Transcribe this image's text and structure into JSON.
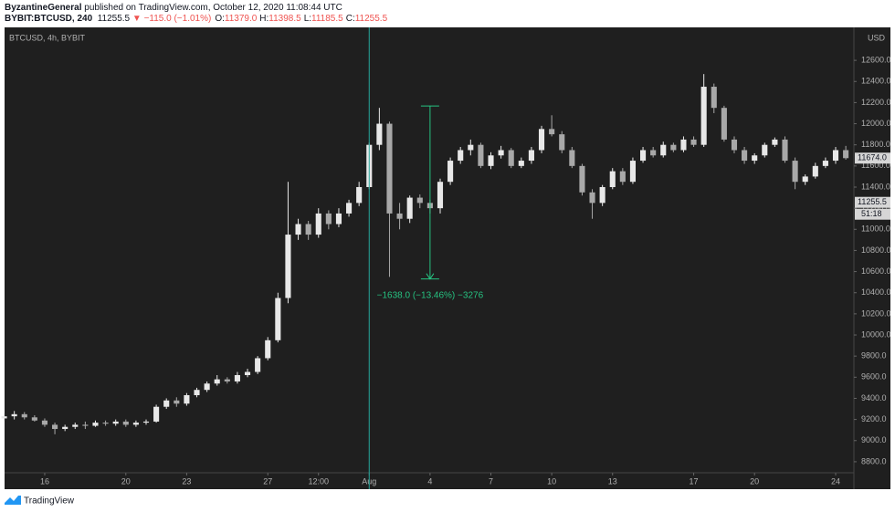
{
  "header": {
    "author": "ByzantineGeneral",
    "published": "published on TradingView.com, October 12, 2020 11:08:44 UTC",
    "symbol": "BYBIT:BTCUSD, 240",
    "last": "11255.5",
    "change": "▼ −115.0 (−1.01%)",
    "ohlc": [
      {
        "label": "O:",
        "value": "11379.0"
      },
      {
        "label": "H:",
        "value": "11398.5"
      },
      {
        "label": "L:",
        "value": "11185.5"
      },
      {
        "label": "C:",
        "value": "11255.5"
      }
    ]
  },
  "footer": {
    "brand": "TradingView"
  },
  "chart_data": {
    "type": "candlestick",
    "legend": "BTCUSD, 4h, BYBIT",
    "currency": "USD",
    "up_color": "#e8e8e8",
    "down_color": "#a8a8a8",
    "x": [
      -2,
      -1.5,
      -1,
      -0.5,
      0,
      0.5,
      1,
      1.5,
      2,
      2.5,
      3,
      3.5,
      4,
      4.5,
      5,
      5.5,
      6,
      6.5,
      7,
      7.5,
      8,
      8.5,
      9,
      9.5,
      10,
      10.5,
      11,
      11.5,
      12,
      12.5,
      13,
      13.5,
      14,
      14.5,
      15,
      15.5,
      16,
      16.5,
      17,
      17.5,
      18,
      18.5,
      19,
      19.5,
      20,
      20.5,
      21,
      21.5,
      22,
      22.5,
      23,
      23.5,
      24,
      24.5,
      25,
      25.5,
      26,
      26.5,
      27,
      27.5,
      28,
      28.5,
      29,
      29.5,
      30,
      30.5,
      31,
      31.5,
      32,
      32.5,
      33,
      33.5,
      34,
      34.5,
      35,
      35.5,
      36,
      36.5,
      37,
      37.5,
      38,
      38.5,
      39,
      39.5
    ],
    "open": [
      9210,
      9230,
      9250,
      9220,
      9190,
      9150,
      9110,
      9130,
      9150,
      9140,
      9170,
      9160,
      9180,
      9150,
      9170,
      9180,
      9320,
      9380,
      9350,
      9430,
      9480,
      9540,
      9580,
      9560,
      9620,
      9650,
      9780,
      9950,
      10350,
      10950,
      11050,
      10950,
      11150,
      11050,
      11150,
      11250,
      11400,
      11800,
      12000,
      11150,
      11100,
      11300,
      11250,
      11200,
      11450,
      11650,
      11750,
      11800,
      11600,
      11700,
      11750,
      11600,
      11650,
      11750,
      11950,
      11900,
      11750,
      11600,
      11350,
      11250,
      11400,
      11550,
      11450,
      11650,
      11750,
      11700,
      11800,
      11750,
      11850,
      11800,
      12350,
      12150,
      11850,
      11750,
      11650,
      11700,
      11800,
      11850,
      11650,
      11450,
      11500,
      11600,
      11650,
      11750
    ],
    "high": [
      9260,
      9280,
      9270,
      9240,
      9210,
      9170,
      9150,
      9170,
      9180,
      9190,
      9190,
      9200,
      9200,
      9190,
      9200,
      9340,
      9400,
      9410,
      9450,
      9500,
      9560,
      9620,
      9600,
      9650,
      9680,
      9800,
      9980,
      10400,
      11450,
      11100,
      11080,
      11200,
      11180,
      11200,
      11280,
      11450,
      11820,
      12150,
      12020,
      11250,
      11320,
      11330,
      11280,
      11480,
      11680,
      11780,
      11850,
      11820,
      11730,
      11790,
      11770,
      11680,
      11780,
      11980,
      12080,
      11930,
      11780,
      11620,
      11380,
      11420,
      11580,
      11580,
      11680,
      11780,
      11780,
      11830,
      11820,
      11880,
      11880,
      12470,
      12380,
      12170,
      11880,
      11780,
      11720,
      11820,
      11870,
      11880,
      11680,
      11520,
      11630,
      11680,
      11780,
      11790
    ],
    "low": [
      9190,
      9200,
      9200,
      9180,
      9130,
      9060,
      9090,
      9110,
      9110,
      9130,
      9140,
      9140,
      9130,
      9130,
      9150,
      9170,
      9300,
      9320,
      9330,
      9410,
      9460,
      9520,
      9540,
      9540,
      9600,
      9630,
      9760,
      9930,
      10300,
      10900,
      10900,
      10920,
      11000,
      11020,
      11120,
      11220,
      11380,
      11750,
      10550,
      11000,
      11060,
      11200,
      11150,
      11150,
      11420,
      11620,
      11700,
      11580,
      11570,
      11670,
      11580,
      11580,
      11620,
      11720,
      11880,
      11720,
      11580,
      11320,
      11100,
      11220,
      11380,
      11420,
      11430,
      11630,
      11680,
      11680,
      11730,
      11730,
      11780,
      11780,
      12100,
      11830,
      11720,
      11620,
      11620,
      11680,
      11780,
      11630,
      11380,
      11420,
      11480,
      11580,
      11620,
      11660
    ],
    "close": [
      9230,
      9250,
      9220,
      9190,
      9150,
      9110,
      9130,
      9150,
      9140,
      9170,
      9160,
      9180,
      9150,
      9170,
      9180,
      9320,
      9380,
      9350,
      9430,
      9480,
      9540,
      9580,
      9560,
      9620,
      9650,
      9780,
      9950,
      10350,
      10950,
      11050,
      10950,
      11150,
      11050,
      11150,
      11250,
      11400,
      11800,
      12000,
      11150,
      11100,
      11300,
      11250,
      11200,
      11450,
      11650,
      11750,
      11800,
      11600,
      11700,
      11750,
      11600,
      11650,
      11750,
      11950,
      11900,
      11750,
      11600,
      11350,
      11250,
      11400,
      11550,
      11450,
      11650,
      11750,
      11700,
      11800,
      11750,
      11850,
      11800,
      12350,
      12150,
      11850,
      11750,
      11650,
      11700,
      11800,
      11850,
      11650,
      11450,
      11500,
      11600,
      11650,
      11750,
      11674
    ],
    "xlim": [
      -1.98,
      39.9
    ],
    "ylim": [
      8540,
      12912
    ],
    "xticks": [
      {
        "value": 0,
        "label": "16"
      },
      {
        "value": 4,
        "label": "20"
      },
      {
        "value": 7,
        "label": "23"
      },
      {
        "value": 11,
        "label": "27"
      },
      {
        "value": 13.5,
        "label": "12:00"
      },
      {
        "value": 16,
        "label": "Aug"
      },
      {
        "value": 19,
        "label": "4"
      },
      {
        "value": 22,
        "label": "7"
      },
      {
        "value": 25,
        "label": "10"
      },
      {
        "value": 28,
        "label": "13"
      },
      {
        "value": 32,
        "label": "17"
      },
      {
        "value": 35,
        "label": "20"
      },
      {
        "value": 39,
        "label": "24"
      }
    ],
    "yticks": [
      {
        "value": 8800,
        "label": "8800.0"
      },
      {
        "value": 9000,
        "label": "9000.0"
      },
      {
        "value": 9200,
        "label": "9200.0"
      },
      {
        "value": 9400,
        "label": "9400.0"
      },
      {
        "value": 9600,
        "label": "9600.0"
      },
      {
        "value": 9800,
        "label": "9800.0"
      },
      {
        "value": 10000,
        "label": "10000.0"
      },
      {
        "value": 10200,
        "label": "10200.0"
      },
      {
        "value": 10400,
        "label": "10400.0"
      },
      {
        "value": 10600,
        "label": "10600.0"
      },
      {
        "value": 10800,
        "label": "10800.0"
      },
      {
        "value": 11000,
        "label": "11000.0"
      },
      {
        "value": 11200,
        "label": "11200.0"
      },
      {
        "value": 11400,
        "label": "11400.0"
      },
      {
        "value": 11600,
        "label": "11600.0"
      },
      {
        "value": 11800,
        "label": "11800.0"
      },
      {
        "value": 12000,
        "label": "12000.0"
      },
      {
        "value": 12200,
        "label": "12200.0"
      },
      {
        "value": 12400,
        "label": "12400.0"
      },
      {
        "value": 12600,
        "label": "12600.0"
      }
    ],
    "price_labels": [
      {
        "value": 11674,
        "label": "11674.0"
      },
      {
        "value": 11255.5,
        "label": "11255.5"
      }
    ],
    "countdown": "51:18",
    "vline": {
      "x": 16,
      "color": "#26a69a"
    },
    "measure": {
      "x": 19,
      "top": 12168,
      "bottom": 10530,
      "label": "−1638.0 (−13.46%) −3276",
      "color": "#26c281"
    }
  }
}
